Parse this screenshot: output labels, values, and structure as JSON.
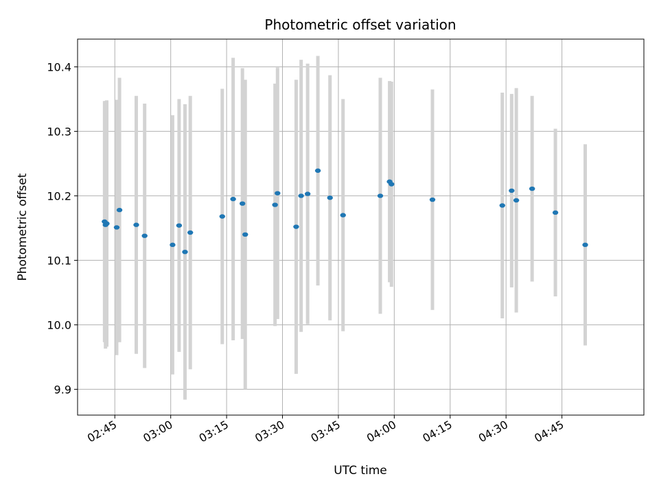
{
  "chart_data": {
    "type": "scatter",
    "title": "Photometric offset variation",
    "xlabel": "UTC time",
    "ylabel": "Photometric offset",
    "grid": true,
    "xlim": [
      "02:35",
      "05:07"
    ],
    "ylim": [
      9.86,
      10.443
    ],
    "x_ticks": [
      "02:45",
      "03:00",
      "03:15",
      "03:30",
      "03:45",
      "04:00",
      "04:15",
      "04:30",
      "04:45"
    ],
    "y_ticks": [
      "9.9",
      "10.0",
      "10.1",
      "10.2",
      "10.3",
      "10.4"
    ],
    "colors": {
      "points": "#1f77b4",
      "errorbars": "#d3d3d3"
    },
    "points": [
      {
        "x": "02:42:15",
        "y": 10.16,
        "err": 0.187
      },
      {
        "x": "02:42:30",
        "y": 10.155,
        "err": 0.192
      },
      {
        "x": "02:42:50",
        "y": 10.157,
        "err": 0.191
      },
      {
        "x": "02:45:30",
        "y": 10.151,
        "err": 0.198
      },
      {
        "x": "02:46:15",
        "y": 10.178,
        "err": 0.205
      },
      {
        "x": "02:50:45",
        "y": 10.155,
        "err": 0.2
      },
      {
        "x": "02:53:00",
        "y": 10.138,
        "err": 0.205
      },
      {
        "x": "03:00:30",
        "y": 10.124,
        "err": 0.201
      },
      {
        "x": "03:02:15",
        "y": 10.154,
        "err": 0.196
      },
      {
        "x": "03:03:50",
        "y": 10.113,
        "err": 0.229
      },
      {
        "x": "03:05:15",
        "y": 10.143,
        "err": 0.212
      },
      {
        "x": "03:13:50",
        "y": 10.168,
        "err": 0.198
      },
      {
        "x": "03:16:45",
        "y": 10.195,
        "err": 0.219
      },
      {
        "x": "03:19:15",
        "y": 10.188,
        "err": 0.21
      },
      {
        "x": "03:20:00",
        "y": 10.14,
        "err": 0.24
      },
      {
        "x": "03:28:00",
        "y": 10.186,
        "err": 0.188
      },
      {
        "x": "03:28:40",
        "y": 10.204,
        "err": 0.195
      },
      {
        "x": "03:33:40",
        "y": 10.152,
        "err": 0.228
      },
      {
        "x": "03:35:00",
        "y": 10.2,
        "err": 0.211
      },
      {
        "x": "03:36:45",
        "y": 10.203,
        "err": 0.202
      },
      {
        "x": "03:39:30",
        "y": 10.239,
        "err": 0.178
      },
      {
        "x": "03:42:45",
        "y": 10.197,
        "err": 0.19
      },
      {
        "x": "03:46:15",
        "y": 10.17,
        "err": 0.18
      },
      {
        "x": "03:56:15",
        "y": 10.2,
        "err": 0.183
      },
      {
        "x": "03:58:45",
        "y": 10.222,
        "err": 0.156
      },
      {
        "x": "03:59:15",
        "y": 10.218,
        "err": 0.159
      },
      {
        "x": "04:10:15",
        "y": 10.194,
        "err": 0.171
      },
      {
        "x": "04:29:00",
        "y": 10.185,
        "err": 0.175
      },
      {
        "x": "04:31:30",
        "y": 10.208,
        "err": 0.15
      },
      {
        "x": "04:32:45",
        "y": 10.193,
        "err": 0.174
      },
      {
        "x": "04:37:00",
        "y": 10.211,
        "err": 0.144
      },
      {
        "x": "04:43:15",
        "y": 10.174,
        "err": 0.13
      },
      {
        "x": "04:51:15",
        "y": 10.124,
        "err": 0.156
      }
    ]
  }
}
